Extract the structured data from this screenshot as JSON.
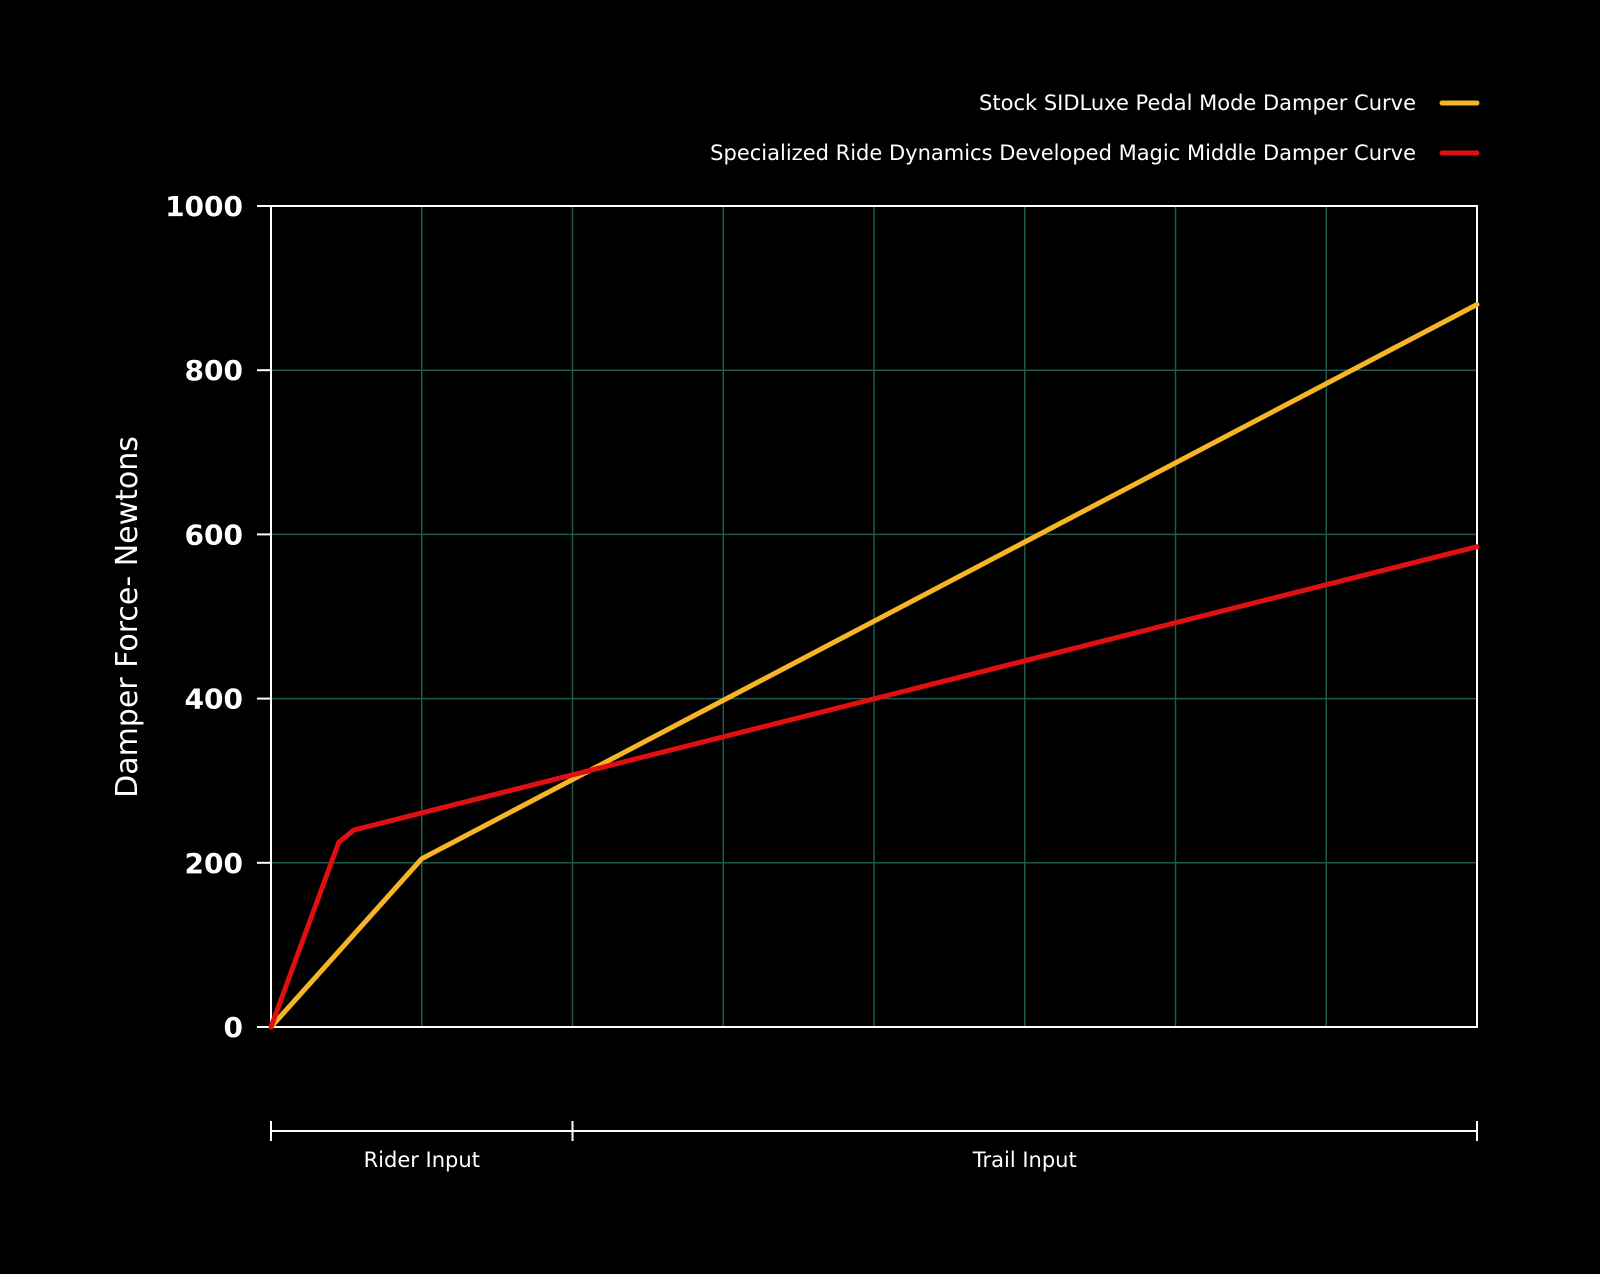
{
  "chart_data": {
    "type": "line",
    "title": "",
    "xlabel": "",
    "ylabel": "Damper Force- Newtons",
    "ylim": [
      0,
      1000
    ],
    "xlim": [
      0,
      8
    ],
    "yticks": [
      "0",
      "200",
      "400",
      "600",
      "800",
      "1000"
    ],
    "grid": true,
    "legend_position": "top-right",
    "series": [
      {
        "name": "Stock SIDLuxe Pedal Mode Damper Curve",
        "color": "#f5b526",
        "x": [
          0,
          1,
          8
        ],
        "y": [
          0,
          205,
          880
        ]
      },
      {
        "name": "Specialized Ride Dynamics Developed Magic Middle Damper Curve",
        "color": "#e01010",
        "x": [
          0,
          0.45,
          0.55,
          8
        ],
        "y": [
          0,
          225,
          240,
          585
        ]
      }
    ],
    "x_ranges": [
      {
        "label": "Rider Input",
        "from": 0,
        "to": 2
      },
      {
        "label": "Trail Input",
        "from": 2,
        "to": 8
      }
    ]
  }
}
